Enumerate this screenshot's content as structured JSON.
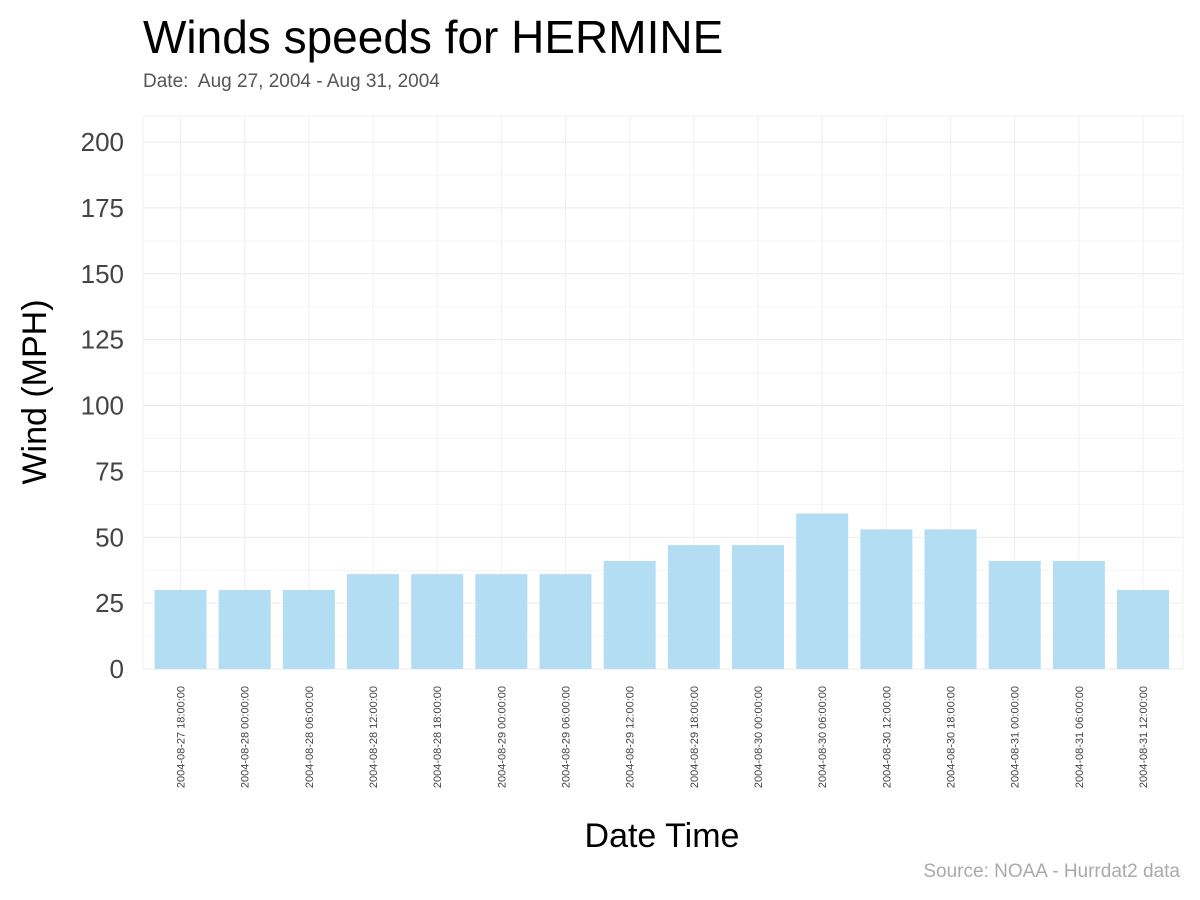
{
  "chart_data": {
    "type": "bar",
    "title": "Winds speeds for HERMINE",
    "subtitle": "Date:  Aug 27, 2004 - Aug 31, 2004",
    "caption": "Source: NOAA - Hurrdat2 data",
    "xlabel": "Date Time",
    "ylabel": "Wind (MPH)",
    "ylim": [
      0,
      210
    ],
    "yticks": [
      0,
      25,
      50,
      75,
      100,
      125,
      150,
      175,
      200
    ],
    "grid": true,
    "bar_color": "#b3ddf2",
    "categories": [
      "2004-08-27 18:00:00",
      "2004-08-28 00:00:00",
      "2004-08-28 06:00:00",
      "2004-08-28 12:00:00",
      "2004-08-28 18:00:00",
      "2004-08-29 00:00:00",
      "2004-08-29 06:00:00",
      "2004-08-29 12:00:00",
      "2004-08-29 18:00:00",
      "2004-08-30 00:00:00",
      "2004-08-30 06:00:00",
      "2004-08-30 12:00:00",
      "2004-08-30 18:00:00",
      "2004-08-31 00:00:00",
      "2004-08-31 06:00:00",
      "2004-08-31 12:00:00"
    ],
    "values": [
      30,
      30,
      30,
      36,
      36,
      36,
      36,
      41,
      47,
      47,
      59,
      53,
      53,
      41,
      41,
      30
    ]
  }
}
